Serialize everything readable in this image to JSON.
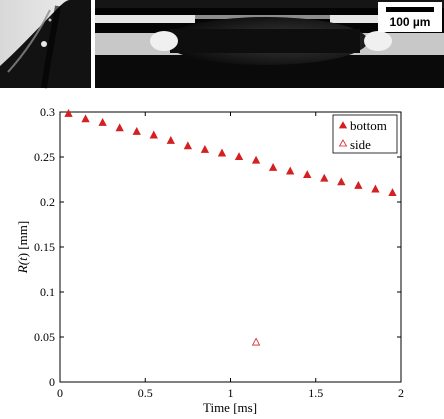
{
  "photos": {
    "scale_bar_label": "100 µm"
  },
  "chart_data": {
    "type": "scatter",
    "title": "",
    "xlabel": "Time [ms]",
    "ylabel_prefix": "R(",
    "ylabel_var": "t",
    "ylabel_suffix": ") [mm]",
    "xlim": [
      0,
      2
    ],
    "ylim": [
      0,
      0.3
    ],
    "x_ticks": [
      0,
      0.5,
      1,
      1.5,
      2
    ],
    "x_tick_labels": [
      "0",
      "0.5",
      "1",
      "1.5",
      "2"
    ],
    "y_ticks": [
      0,
      0.05,
      0.1,
      0.15,
      0.2,
      0.25,
      0.3
    ],
    "y_tick_labels": [
      "0",
      "0.05",
      "0.1",
      "0.15",
      "0.2",
      "0.25",
      "0.3"
    ],
    "grid": false,
    "legend_position": "top-right",
    "series": [
      {
        "name": "bottom",
        "marker": "filled-triangle",
        "color": "#d42020",
        "x": [
          0.05,
          0.15,
          0.25,
          0.35,
          0.45,
          0.55,
          0.65,
          0.75,
          0.85,
          0.95,
          1.05,
          1.15,
          1.25,
          1.35,
          1.45,
          1.55,
          1.65,
          1.75,
          1.85,
          1.95
        ],
        "y": [
          0.298,
          0.292,
          0.288,
          0.282,
          0.278,
          0.274,
          0.268,
          0.262,
          0.258,
          0.254,
          0.25,
          0.246,
          0.238,
          0.234,
          0.23,
          0.226,
          0.222,
          0.218,
          0.214,
          0.21
        ]
      },
      {
        "name": "side",
        "marker": "open-triangle",
        "color": "#d42020",
        "x": [
          1.15
        ],
        "y": [
          0.044
        ]
      }
    ]
  }
}
